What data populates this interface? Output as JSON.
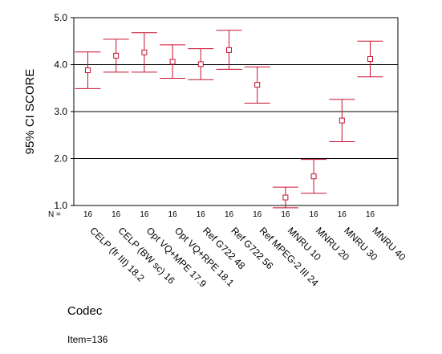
{
  "chart_data": {
    "type": "errorbar",
    "title": "",
    "xlabel": "Codec",
    "ylabel": "95% CI SCORE",
    "ylim": [
      1.0,
      5.0
    ],
    "yticks": [
      "1.0",
      "2.0",
      "3.0",
      "4.0",
      "5.0"
    ],
    "reference_lines": [
      2.0,
      3.0,
      4.0
    ],
    "n_label": "N =",
    "footnote": "Item=136",
    "categories": [
      "CELP (fr III) 18.2",
      "CELP (BW sc) 16",
      "Opt VQ+MPE 17.9",
      "Opt VQ+RPE 18.1",
      "Ref G722 48",
      "Ref G722 56",
      "Ref MPEG-2 III 24",
      "MNRU 10",
      "MNRU 20",
      "MNRU 30",
      "MNRU 40"
    ],
    "n": [
      "16",
      "16",
      "16",
      "16",
      "16",
      "16",
      "16",
      "16",
      "16",
      "16",
      "16"
    ],
    "mean": [
      3.88,
      4.19,
      4.26,
      4.06,
      4.01,
      4.31,
      3.57,
      1.17,
      1.62,
      2.81,
      4.12
    ],
    "upper": [
      4.27,
      4.54,
      4.68,
      4.42,
      4.34,
      4.73,
      3.95,
      1.39,
      1.98,
      3.26,
      4.5
    ],
    "lower": [
      3.49,
      3.84,
      3.84,
      3.71,
      3.68,
      3.9,
      3.18,
      0.95,
      1.26,
      2.36,
      3.74
    ],
    "series_color": "#c8102e"
  }
}
